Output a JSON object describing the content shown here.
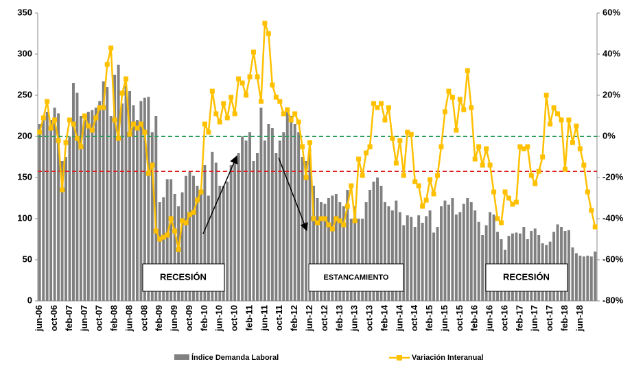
{
  "chart_data": {
    "type": "bar-line",
    "categories": [
      "jun-06",
      null,
      null,
      null,
      "oct-06",
      null,
      null,
      null,
      "feb-07",
      null,
      null,
      null,
      "jun-07",
      null,
      null,
      null,
      "oct-07",
      null,
      null,
      null,
      "feb-08",
      null,
      null,
      null,
      "jun-08",
      null,
      null,
      null,
      "oct-08",
      null,
      null,
      null,
      "feb-09",
      null,
      null,
      null,
      "jun-09",
      null,
      null,
      null,
      "oct-09",
      null,
      null,
      null,
      "feb-10",
      null,
      null,
      null,
      "jun-10",
      null,
      null,
      null,
      "oct-10",
      null,
      null,
      null,
      "feb-11",
      null,
      null,
      null,
      "jun-11",
      null,
      null,
      null,
      "oct-11",
      null,
      null,
      null,
      "feb-12",
      null,
      null,
      null,
      "jun-12",
      null,
      null,
      null,
      "oct-12",
      null,
      null,
      null,
      "feb-13",
      null,
      null,
      null,
      "jun-13",
      null,
      null,
      null,
      "oct-13",
      null,
      null,
      null,
      "feb-14",
      null,
      null,
      null,
      "jun-14",
      null,
      null,
      null,
      "oct-14",
      null,
      null,
      null,
      "feb-15",
      null,
      null,
      null,
      "jun-15",
      null,
      null,
      null,
      "oct-15",
      null,
      null,
      null,
      "feb-16",
      null,
      null,
      null,
      "jun-16",
      null,
      null,
      null,
      "oct-16",
      null,
      null,
      null,
      "feb-17",
      null,
      null,
      null,
      "jun-17",
      null,
      null,
      null,
      "oct-17",
      null,
      null,
      null,
      "feb-18",
      null,
      null,
      null,
      "jun-18",
      null,
      null,
      null,
      null
    ],
    "series": [
      {
        "name": "Índice Demanda Laboral",
        "type": "bar",
        "color": "#808080",
        "values": [
          215,
          225,
          230,
          220,
          235,
          228,
          170,
          175,
          200,
          265,
          253,
          225,
          220,
          230,
          232,
          235,
          243,
          267,
          260,
          225,
          275,
          287,
          240,
          262,
          255,
          238,
          220,
          243,
          247,
          248,
          205,
          225,
          120,
          126,
          148,
          148,
          130,
          115,
          132,
          152,
          157,
          152,
          140,
          135,
          165,
          128,
          181,
          168,
          140,
          140,
          145,
          165,
          170,
          180,
          200,
          195,
          205,
          170,
          180,
          235,
          195,
          215,
          210,
          180,
          195,
          205,
          230,
          225,
          215,
          205,
          175,
          170,
          185,
          140,
          125,
          120,
          118,
          125,
          128,
          130,
          120,
          115,
          135,
          100,
          115,
          100,
          100,
          120,
          135,
          145,
          150,
          140,
          120,
          115,
          110,
          122,
          108,
          92,
          104,
          102,
          90,
          104,
          95,
          103,
          110,
          83,
          90,
          115,
          122,
          117,
          125,
          105,
          108,
          118,
          125,
          120,
          110,
          96,
          80,
          92,
          108,
          105,
          84,
          75,
          62,
          79,
          82,
          83,
          82,
          90,
          75,
          85,
          88,
          80,
          70,
          68,
          72,
          84,
          93,
          90,
          85,
          86,
          65,
          58,
          55,
          54,
          55,
          54,
          60
        ]
      },
      {
        "name": "Variación Interanual",
        "type": "line",
        "axis": "y2",
        "color": "#ffc000",
        "values": [
          2,
          9,
          17,
          4,
          8,
          -2,
          -26,
          -3,
          8,
          6,
          -1,
          -5,
          10,
          5,
          3,
          9,
          14,
          14,
          35,
          43,
          8,
          -1,
          21,
          28,
          1,
          6,
          4,
          6,
          2,
          -18,
          -14,
          -46,
          -50,
          -49,
          -48,
          -40,
          -46,
          -55,
          -41,
          -42,
          -38,
          -37,
          -31,
          -27,
          6,
          2,
          22,
          11,
          7,
          16,
          9,
          19,
          11,
          28,
          26,
          20,
          29,
          41,
          29,
          17,
          55,
          50,
          25,
          19,
          17,
          11,
          13,
          8,
          11,
          7,
          -5,
          -20,
          -3,
          -40,
          -42,
          -40,
          -40,
          -43,
          -45,
          -40,
          -41,
          -43,
          -34,
          -24,
          -41,
          -11,
          -19,
          -8,
          -5,
          16,
          14,
          16,
          8,
          14,
          -1,
          -13,
          -2,
          -19,
          2,
          1,
          -22,
          -24,
          -34,
          -31,
          -21,
          -28,
          -19,
          -5,
          12,
          22,
          19,
          3,
          18,
          13,
          32,
          14,
          -11,
          -5,
          -14,
          -6,
          -14,
          -27,
          -40,
          -42,
          -27,
          -30,
          -33,
          -32,
          -5,
          -6,
          -5,
          -19,
          -23,
          -17,
          -10,
          20,
          6,
          14,
          11,
          8,
          -16,
          8,
          -3,
          5,
          -6,
          -14,
          -27,
          -36,
          -44
        ]
      }
    ],
    "ylim": [
      0,
      350
    ],
    "yticks": [
      0,
      50,
      100,
      150,
      200,
      250,
      300,
      350
    ],
    "y2lim": [
      -80,
      60
    ],
    "y2ticks": [
      {
        "value": -80,
        "label": "-80%"
      },
      {
        "value": -60,
        "label": "-60%"
      },
      {
        "value": -40,
        "label": "-40%"
      },
      {
        "value": -20,
        "label": "-20%"
      },
      {
        "value": 0,
        "label": "0%"
      },
      {
        "value": 20,
        "label": "20%"
      },
      {
        "value": 40,
        "label": "40%"
      },
      {
        "value": 60,
        "label": "60%"
      }
    ],
    "reference_lines": [
      {
        "axis": "y2",
        "value": 0,
        "color": "#2e9e5b"
      },
      {
        "axis": "y2",
        "value": -17,
        "color": "#e02020"
      }
    ],
    "annotations": [
      "RECESIÓN",
      "ESTANCAMIENTO",
      "RECESIÓN"
    ],
    "legend": "bottom"
  }
}
